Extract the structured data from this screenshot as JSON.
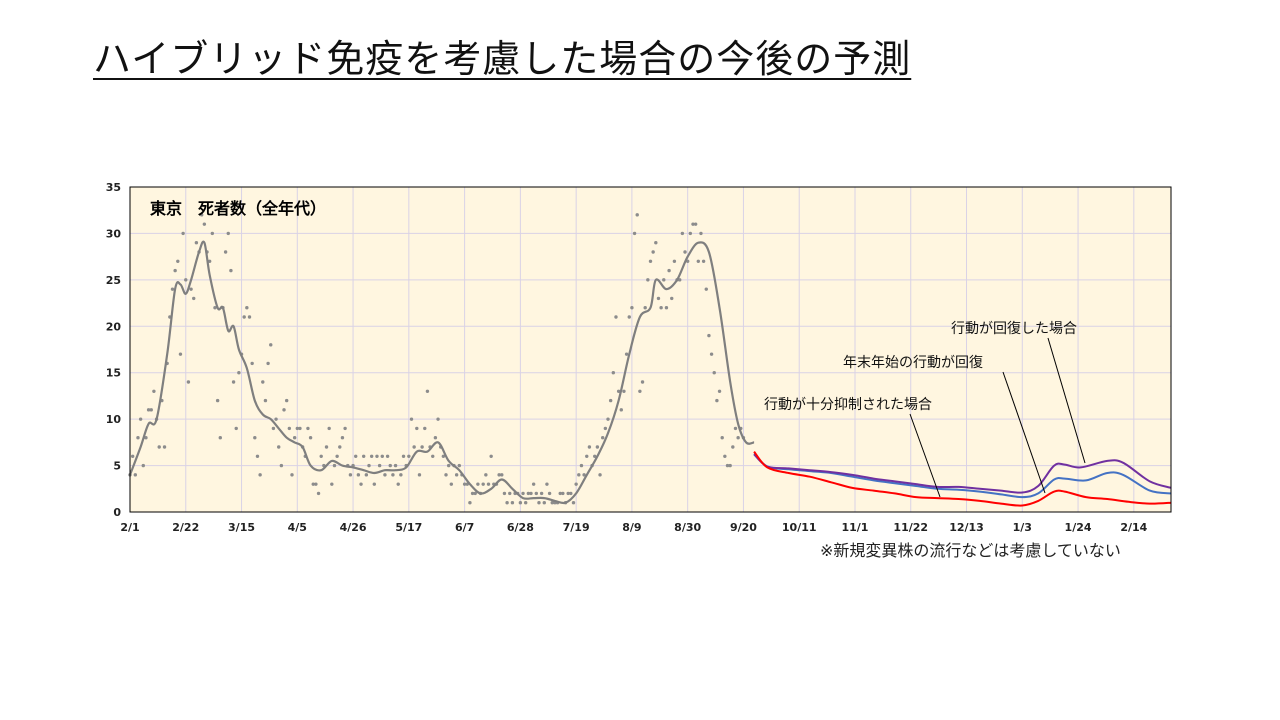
{
  "slide": {
    "title": "ハイブリッド免疫を考慮した場合の今後の予測",
    "footnote": "※新規変異株の流行などは考慮していない"
  },
  "colors": {
    "plot_background": "#fff6e0",
    "observed_points": "#8c8c8c",
    "observed_line": "#7f7f7f",
    "suppressed": "#ff0000",
    "newyear_recover": "#4472c4",
    "full_recover": "#7030a0"
  },
  "chart_data": {
    "type": "line",
    "title": "東京　死者数（全年代）",
    "xlabel": "",
    "ylabel": "",
    "x_unit": "days from 2/1",
    "xlim": [
      0,
      392
    ],
    "ylim": [
      0,
      35
    ],
    "y_ticks": [
      0,
      5,
      10,
      15,
      20,
      25,
      30,
      35
    ],
    "x_ticks": [
      {
        "day": 0,
        "label": "2/1"
      },
      {
        "day": 21,
        "label": "2/22"
      },
      {
        "day": 42,
        "label": "3/15"
      },
      {
        "day": 63,
        "label": "4/5"
      },
      {
        "day": 84,
        "label": "4/26"
      },
      {
        "day": 105,
        "label": "5/17"
      },
      {
        "day": 126,
        "label": "6/7"
      },
      {
        "day": 147,
        "label": "6/28"
      },
      {
        "day": 168,
        "label": "7/19"
      },
      {
        "day": 189,
        "label": "8/9"
      },
      {
        "day": 210,
        "label": "8/30"
      },
      {
        "day": 231,
        "label": "9/20"
      },
      {
        "day": 252,
        "label": "10/11"
      },
      {
        "day": 273,
        "label": "11/1"
      },
      {
        "day": 294,
        "label": "11/22"
      },
      {
        "day": 315,
        "label": "12/13"
      },
      {
        "day": 336,
        "label": "1/3"
      },
      {
        "day": 357,
        "label": "1/24"
      },
      {
        "day": 378,
        "label": "2/14"
      }
    ],
    "grid": true,
    "observed_smoothed": [
      [
        0,
        4
      ],
      [
        4,
        7
      ],
      [
        7,
        9.5
      ],
      [
        10,
        10
      ],
      [
        14,
        17
      ],
      [
        17,
        24
      ],
      [
        19,
        24.5
      ],
      [
        21,
        23.5
      ],
      [
        23,
        25
      ],
      [
        26,
        28
      ],
      [
        28,
        29
      ],
      [
        30,
        25.5
      ],
      [
        33,
        22
      ],
      [
        35,
        22
      ],
      [
        37,
        19.5
      ],
      [
        39,
        20
      ],
      [
        41,
        17.5
      ],
      [
        44,
        15.5
      ],
      [
        47,
        12
      ],
      [
        50,
        10.5
      ],
      [
        53,
        10
      ],
      [
        56,
        9
      ],
      [
        59,
        8
      ],
      [
        62,
        7.5
      ],
      [
        65,
        7
      ],
      [
        68,
        5
      ],
      [
        72,
        4.5
      ],
      [
        76,
        5.5
      ],
      [
        80,
        5
      ],
      [
        84,
        4.8
      ],
      [
        88,
        4.5
      ],
      [
        92,
        4.2
      ],
      [
        96,
        4.5
      ],
      [
        100,
        4.5
      ],
      [
        104,
        4.8
      ],
      [
        108,
        6.5
      ],
      [
        112,
        6.5
      ],
      [
        116,
        7.5
      ],
      [
        120,
        5.5
      ],
      [
        124,
        4.5
      ],
      [
        128,
        3
      ],
      [
        132,
        2
      ],
      [
        136,
        2.5
      ],
      [
        140,
        3.5
      ],
      [
        144,
        2.5
      ],
      [
        148,
        1.5
      ],
      [
        152,
        1.5
      ],
      [
        156,
        1.5
      ],
      [
        160,
        1.2
      ],
      [
        164,
        1
      ],
      [
        168,
        2
      ],
      [
        172,
        4
      ],
      [
        176,
        6
      ],
      [
        180,
        8.5
      ],
      [
        184,
        12
      ],
      [
        188,
        17
      ],
      [
        192,
        21
      ],
      [
        196,
        22
      ],
      [
        198,
        25
      ],
      [
        202,
        24
      ],
      [
        206,
        25
      ],
      [
        210,
        27.5
      ],
      [
        214,
        29
      ],
      [
        218,
        28
      ],
      [
        222,
        22
      ],
      [
        226,
        14
      ],
      [
        229,
        9.5
      ],
      [
        232,
        7.5
      ],
      [
        235,
        7.5
      ]
    ],
    "observed_daily": [
      [
        0,
        4
      ],
      [
        1,
        6
      ],
      [
        2,
        4
      ],
      [
        3,
        8
      ],
      [
        4,
        10
      ],
      [
        5,
        5
      ],
      [
        6,
        8
      ],
      [
        7,
        11
      ],
      [
        8,
        11
      ],
      [
        9,
        13
      ],
      [
        10,
        10
      ],
      [
        11,
        7
      ],
      [
        12,
        12
      ],
      [
        13,
        7
      ],
      [
        14,
        16
      ],
      [
        15,
        21
      ],
      [
        16,
        24
      ],
      [
        17,
        26
      ],
      [
        18,
        27
      ],
      [
        19,
        17
      ],
      [
        20,
        30
      ],
      [
        21,
        25
      ],
      [
        22,
        14
      ],
      [
        23,
        24
      ],
      [
        24,
        23
      ],
      [
        25,
        29
      ],
      [
        26,
        28
      ],
      [
        27,
        32
      ],
      [
        28,
        31
      ],
      [
        29,
        28
      ],
      [
        30,
        27
      ],
      [
        31,
        30
      ],
      [
        32,
        22
      ],
      [
        33,
        12
      ],
      [
        34,
        8
      ],
      [
        35,
        22
      ],
      [
        36,
        28
      ],
      [
        37,
        30
      ],
      [
        38,
        26
      ],
      [
        39,
        14
      ],
      [
        40,
        9
      ],
      [
        41,
        15
      ],
      [
        42,
        17
      ],
      [
        43,
        21
      ],
      [
        44,
        22
      ],
      [
        45,
        21
      ],
      [
        46,
        16
      ],
      [
        47,
        8
      ],
      [
        48,
        6
      ],
      [
        49,
        4
      ],
      [
        50,
        14
      ],
      [
        51,
        12
      ],
      [
        52,
        16
      ],
      [
        53,
        18
      ],
      [
        54,
        9
      ],
      [
        55,
        10
      ],
      [
        56,
        7
      ],
      [
        57,
        5
      ],
      [
        58,
        11
      ],
      [
        59,
        12
      ],
      [
        60,
        9
      ],
      [
        61,
        4
      ],
      [
        62,
        8
      ],
      [
        63,
        9
      ],
      [
        64,
        9
      ],
      [
        65,
        7
      ],
      [
        66,
        6
      ],
      [
        67,
        9
      ],
      [
        68,
        8
      ],
      [
        69,
        3
      ],
      [
        70,
        3
      ],
      [
        71,
        2
      ],
      [
        72,
        6
      ],
      [
        73,
        5
      ],
      [
        74,
        7
      ],
      [
        75,
        9
      ],
      [
        76,
        3
      ],
      [
        77,
        5
      ],
      [
        78,
        6
      ],
      [
        79,
        7
      ],
      [
        80,
        8
      ],
      [
        81,
        9
      ],
      [
        82,
        5
      ],
      [
        83,
        4
      ],
      [
        84,
        5
      ],
      [
        85,
        6
      ],
      [
        86,
        4
      ],
      [
        87,
        3
      ],
      [
        88,
        6
      ],
      [
        89,
        4
      ],
      [
        90,
        5
      ],
      [
        91,
        6
      ],
      [
        92,
        3
      ],
      [
        93,
        6
      ],
      [
        94,
        5
      ],
      [
        95,
        6
      ],
      [
        96,
        4
      ],
      [
        97,
        6
      ],
      [
        98,
        5
      ],
      [
        99,
        4
      ],
      [
        100,
        5
      ],
      [
        101,
        3
      ],
      [
        102,
        4
      ],
      [
        103,
        6
      ],
      [
        104,
        5
      ],
      [
        105,
        6
      ],
      [
        106,
        10
      ],
      [
        107,
        7
      ],
      [
        108,
        9
      ],
      [
        109,
        4
      ],
      [
        110,
        7
      ],
      [
        111,
        9
      ],
      [
        112,
        13
      ],
      [
        113,
        7
      ],
      [
        114,
        6
      ],
      [
        115,
        8
      ],
      [
        116,
        10
      ],
      [
        117,
        7
      ],
      [
        118,
        6
      ],
      [
        119,
        4
      ],
      [
        120,
        5
      ],
      [
        121,
        3
      ],
      [
        122,
        5
      ],
      [
        123,
        4
      ],
      [
        124,
        5
      ],
      [
        125,
        4
      ],
      [
        126,
        3
      ],
      [
        127,
        3
      ],
      [
        128,
        1
      ],
      [
        129,
        2
      ],
      [
        130,
        2
      ],
      [
        131,
        3
      ],
      [
        132,
        2
      ],
      [
        133,
        3
      ],
      [
        134,
        4
      ],
      [
        135,
        3
      ],
      [
        136,
        6
      ],
      [
        137,
        3
      ],
      [
        138,
        3
      ],
      [
        139,
        4
      ],
      [
        140,
        4
      ],
      [
        141,
        2
      ],
      [
        142,
        1
      ],
      [
        143,
        2
      ],
      [
        144,
        1
      ],
      [
        145,
        2
      ],
      [
        146,
        2
      ],
      [
        147,
        1
      ],
      [
        148,
        2
      ],
      [
        149,
        1
      ],
      [
        150,
        2
      ],
      [
        151,
        2
      ],
      [
        152,
        3
      ],
      [
        153,
        2
      ],
      [
        154,
        1
      ],
      [
        155,
        2
      ],
      [
        156,
        1
      ],
      [
        157,
        3
      ],
      [
        158,
        2
      ],
      [
        159,
        1
      ],
      [
        160,
        1
      ],
      [
        161,
        1
      ],
      [
        162,
        2
      ],
      [
        163,
        2
      ],
      [
        164,
        1
      ],
      [
        165,
        2
      ],
      [
        166,
        2
      ],
      [
        167,
        1
      ],
      [
        168,
        3
      ],
      [
        169,
        4
      ],
      [
        170,
        5
      ],
      [
        171,
        4
      ],
      [
        172,
        6
      ],
      [
        173,
        7
      ],
      [
        174,
        5
      ],
      [
        175,
        6
      ],
      [
        176,
        7
      ],
      [
        177,
        4
      ],
      [
        178,
        8
      ],
      [
        179,
        9
      ],
      [
        180,
        10
      ],
      [
        181,
        12
      ],
      [
        182,
        15
      ],
      [
        183,
        21
      ],
      [
        184,
        13
      ],
      [
        185,
        11
      ],
      [
        186,
        13
      ],
      [
        187,
        17
      ],
      [
        188,
        21
      ],
      [
        189,
        22
      ],
      [
        190,
        30
      ],
      [
        191,
        32
      ],
      [
        192,
        13
      ],
      [
        193,
        14
      ],
      [
        194,
        22
      ],
      [
        195,
        25
      ],
      [
        196,
        27
      ],
      [
        197,
        28
      ],
      [
        198,
        29
      ],
      [
        199,
        23
      ],
      [
        200,
        22
      ],
      [
        201,
        25
      ],
      [
        202,
        22
      ],
      [
        203,
        26
      ],
      [
        204,
        23
      ],
      [
        205,
        27
      ],
      [
        206,
        25
      ],
      [
        207,
        25
      ],
      [
        208,
        30
      ],
      [
        209,
        28
      ],
      [
        210,
        27
      ],
      [
        211,
        30
      ],
      [
        212,
        31
      ],
      [
        213,
        31
      ],
      [
        214,
        27
      ],
      [
        215,
        30
      ],
      [
        216,
        27
      ],
      [
        217,
        24
      ],
      [
        218,
        19
      ],
      [
        219,
        17
      ],
      [
        220,
        15
      ],
      [
        221,
        12
      ],
      [
        222,
        13
      ],
      [
        223,
        8
      ],
      [
        224,
        6
      ],
      [
        225,
        5
      ],
      [
        226,
        5
      ],
      [
        227,
        7
      ],
      [
        228,
        9
      ],
      [
        229,
        8
      ],
      [
        230,
        9
      ],
      [
        231,
        8
      ]
    ],
    "series": [
      {
        "name": "行動が十分抑制された場合",
        "points": [
          [
            235,
            6.5
          ],
          [
            240,
            4.8
          ],
          [
            248,
            4.2
          ],
          [
            256,
            3.8
          ],
          [
            264,
            3.2
          ],
          [
            272,
            2.6
          ],
          [
            280,
            2.3
          ],
          [
            288,
            2.0
          ],
          [
            296,
            1.6
          ],
          [
            304,
            1.5
          ],
          [
            312,
            1.4
          ],
          [
            320,
            1.2
          ],
          [
            328,
            0.9
          ],
          [
            336,
            0.7
          ],
          [
            342,
            1.2
          ],
          [
            348,
            2.2
          ],
          [
            352,
            2.2
          ],
          [
            360,
            1.6
          ],
          [
            368,
            1.4
          ],
          [
            376,
            1.1
          ],
          [
            384,
            0.9
          ],
          [
            392,
            1.0
          ]
        ]
      },
      {
        "name": "年末年始の行動が回復",
        "points": [
          [
            235,
            6.3
          ],
          [
            240,
            4.9
          ],
          [
            248,
            4.6
          ],
          [
            256,
            4.4
          ],
          [
            264,
            4.2
          ],
          [
            272,
            3.8
          ],
          [
            280,
            3.4
          ],
          [
            288,
            3.1
          ],
          [
            296,
            2.8
          ],
          [
            304,
            2.5
          ],
          [
            312,
            2.4
          ],
          [
            320,
            2.2
          ],
          [
            328,
            1.9
          ],
          [
            336,
            1.6
          ],
          [
            342,
            2.0
          ],
          [
            348,
            3.5
          ],
          [
            352,
            3.6
          ],
          [
            360,
            3.4
          ],
          [
            368,
            4.2
          ],
          [
            374,
            4.0
          ],
          [
            384,
            2.3
          ],
          [
            392,
            2.0
          ]
        ]
      },
      {
        "name": "行動が回復した場合",
        "points": [
          [
            235,
            6.2
          ],
          [
            240,
            4.9
          ],
          [
            248,
            4.7
          ],
          [
            256,
            4.5
          ],
          [
            264,
            4.3
          ],
          [
            272,
            4.0
          ],
          [
            280,
            3.6
          ],
          [
            288,
            3.3
          ],
          [
            296,
            3.0
          ],
          [
            304,
            2.7
          ],
          [
            312,
            2.7
          ],
          [
            320,
            2.5
          ],
          [
            328,
            2.3
          ],
          [
            336,
            2.1
          ],
          [
            342,
            2.8
          ],
          [
            348,
            5.0
          ],
          [
            352,
            5.1
          ],
          [
            358,
            4.8
          ],
          [
            368,
            5.5
          ],
          [
            374,
            5.3
          ],
          [
            384,
            3.3
          ],
          [
            392,
            2.6
          ]
        ]
      }
    ],
    "annotations": [
      {
        "text": "行動が回復した場合",
        "series": 2
      },
      {
        "text": "年末年始の行動が回復",
        "series": 1
      },
      {
        "text": "行動が十分抑制された場合",
        "series": 0
      }
    ]
  }
}
